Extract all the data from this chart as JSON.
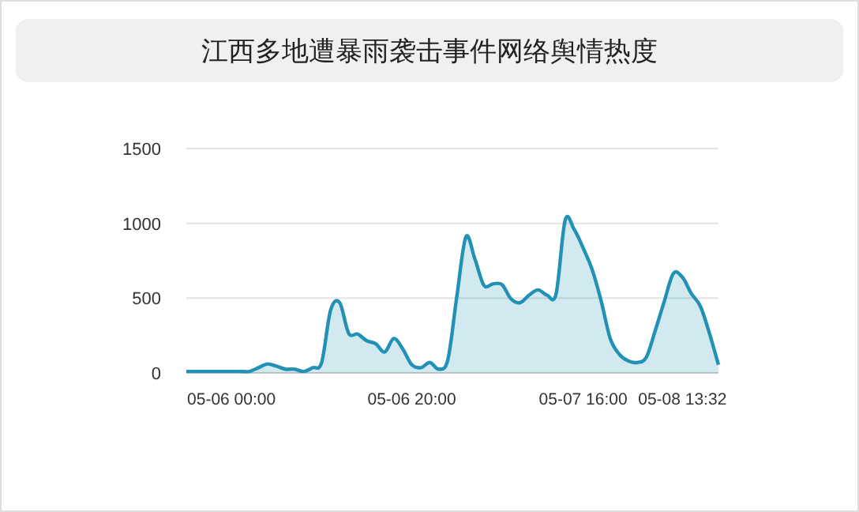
{
  "chart_data": {
    "type": "area",
    "title": "江西多地遭暴雨袭击事件网络舆情热度",
    "categories": [
      null,
      null,
      null,
      null,
      null,
      "05-06 00:00",
      null,
      null,
      null,
      null,
      null,
      null,
      null,
      null,
      null,
      null,
      null,
      null,
      null,
      null,
      null,
      null,
      null,
      null,
      null,
      "05-06 20:00",
      null,
      null,
      null,
      null,
      null,
      null,
      null,
      null,
      null,
      null,
      null,
      null,
      null,
      null,
      null,
      null,
      null,
      null,
      "05-07 16:00",
      null,
      null,
      null,
      null,
      null,
      null,
      null,
      null,
      null,
      null,
      "05-08 13:32",
      null,
      null,
      null,
      null
    ],
    "series": [
      {
        "color": "#2191b5",
        "values": [
          10,
          10,
          10,
          10,
          10,
          10,
          10,
          10,
          35,
          60,
          45,
          25,
          25,
          10,
          35,
          70,
          420,
          470,
          265,
          260,
          215,
          195,
          140,
          230,
          160,
          55,
          35,
          70,
          25,
          90,
          515,
          910,
          760,
          585,
          595,
          590,
          495,
          470,
          520,
          555,
          520,
          530,
          1020,
          960,
          835,
          690,
          480,
          230,
          125,
          80,
          70,
          105,
          285,
          480,
          665,
          640,
          530,
          445,
          265,
          55
        ]
      }
    ],
    "ylim": [
      0,
      1500
    ],
    "yticks": [
      0,
      500,
      1000,
      1500
    ],
    "grid": "y"
  }
}
